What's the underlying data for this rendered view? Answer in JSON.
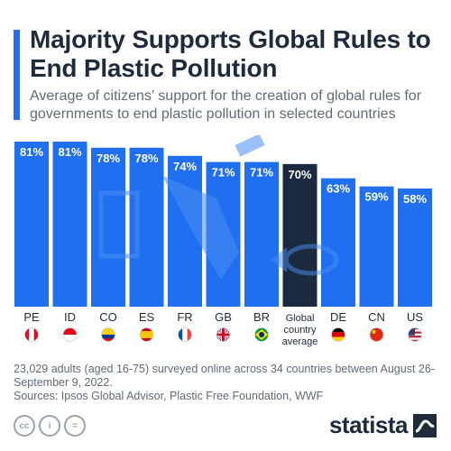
{
  "header": {
    "title": "Majority Supports Global Rules to End Plastic Pollution",
    "subtitle": "Average of citizens’ support for the creation of global rules for governments to end plastic pollution in selected countries"
  },
  "chart_data": {
    "type": "bar",
    "categories": [
      "PE",
      "ID",
      "CO",
      "ES",
      "FR",
      "GB",
      "BR",
      "Global country average",
      "DE",
      "CN",
      "US"
    ],
    "category_lines": [
      [
        "PE"
      ],
      [
        "ID"
      ],
      [
        "CO"
      ],
      [
        "ES"
      ],
      [
        "FR"
      ],
      [
        "GB"
      ],
      [
        "BR"
      ],
      [
        "Global",
        "country",
        "average"
      ],
      [
        "DE"
      ],
      [
        "CN"
      ],
      [
        "US"
      ]
    ],
    "values": [
      81,
      81,
      78,
      78,
      74,
      71,
      71,
      70,
      63,
      59,
      58
    ],
    "value_labels": [
      "81%",
      "81%",
      "78%",
      "78%",
      "74%",
      "71%",
      "71%",
      "70%",
      "63%",
      "59%",
      "58%"
    ],
    "highlight_index": 7,
    "flags": [
      "peru-flag",
      "indonesia-flag",
      "colombia-flag",
      "spain-flag",
      "france-flag",
      "uk-flag",
      "brazil-flag",
      "",
      "germany-flag",
      "china-flag",
      "usa-flag"
    ],
    "unit": "%",
    "ylim": [
      0,
      81
    ],
    "colors": {
      "bar": "#1f6ff0",
      "highlight": "#1b2a3e",
      "watermark": "#4a8ef5"
    }
  },
  "footer": {
    "note": "23,029 adults (aged 16-75) surveyed online across 34 countries between August 26-September 9, 2022.",
    "sources": "Sources: Ipsos Global Advisor, Plastic Free Foundation, WWF",
    "license_icons": [
      "cc",
      "i",
      "="
    ],
    "brand": "statista"
  },
  "colors": {
    "accent": "#1f6ff0",
    "title": "#1d2b3c",
    "text": "#5f6b79"
  }
}
